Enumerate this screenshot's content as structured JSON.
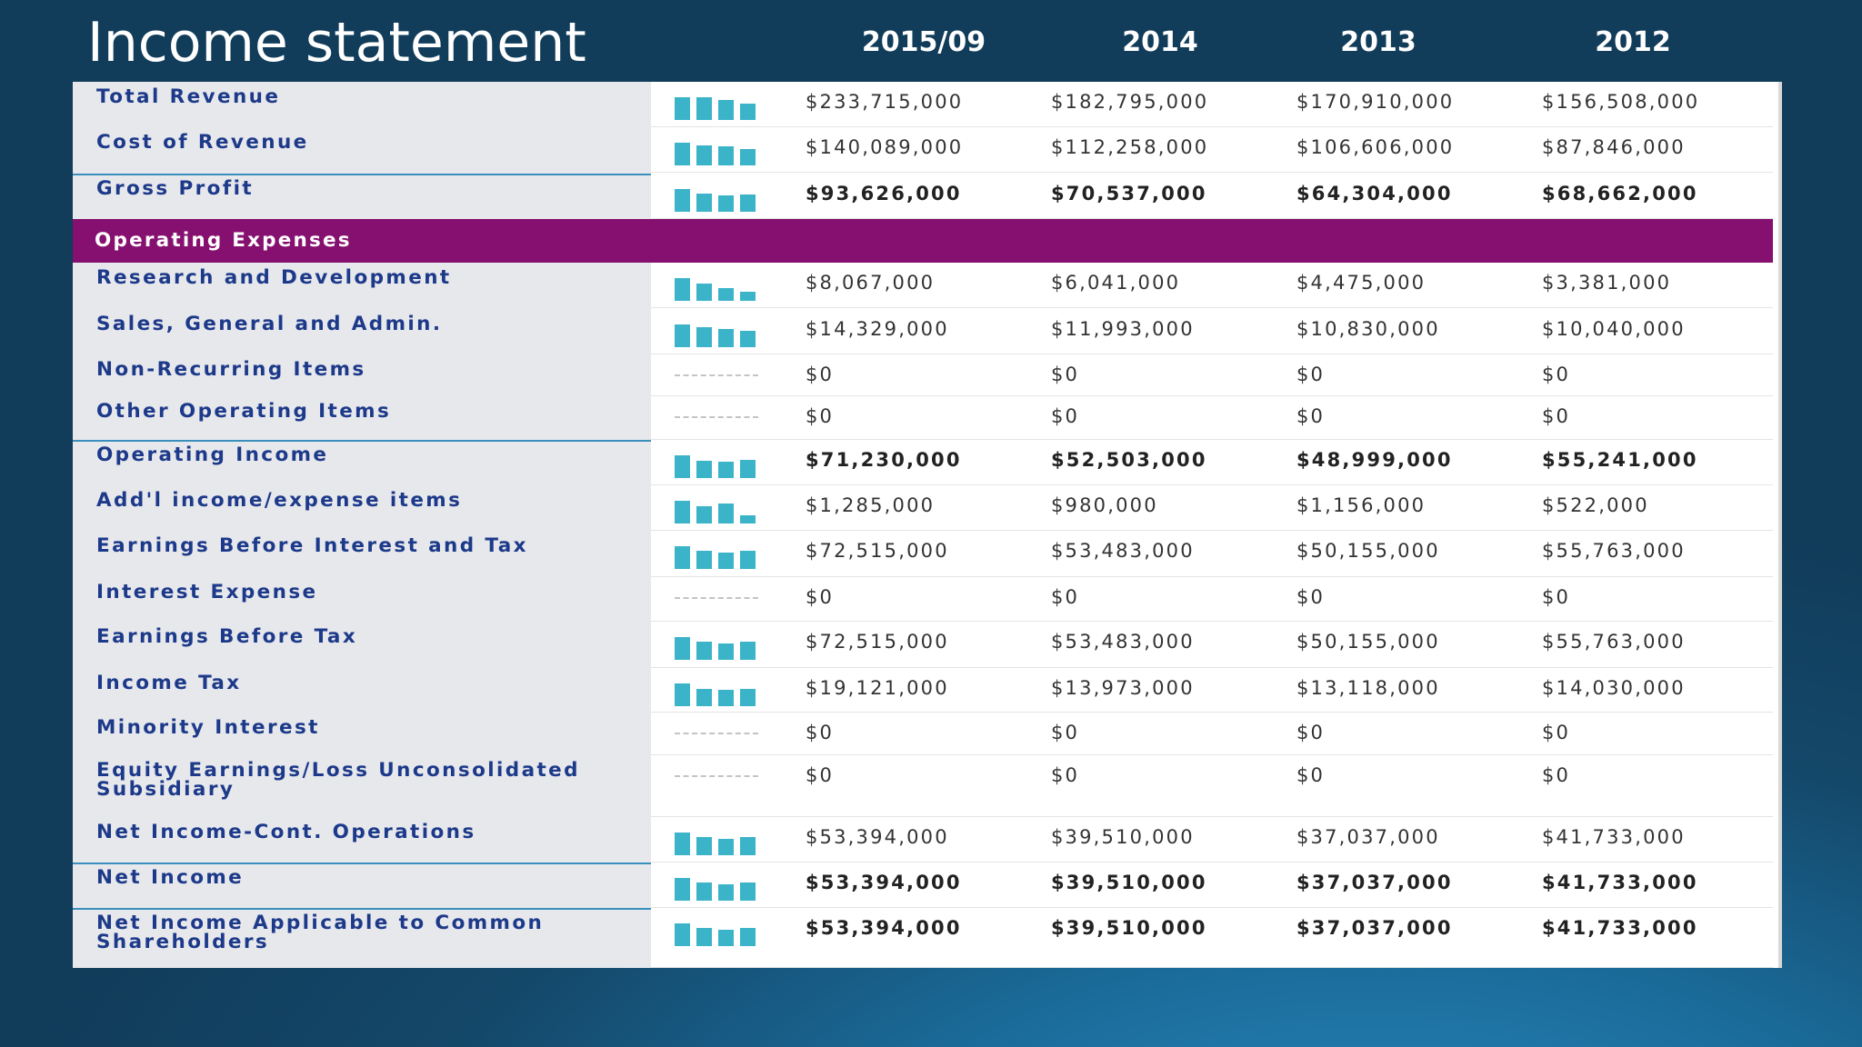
{
  "title": "Income statement",
  "years": [
    "2015/09",
    "2014",
    "2013",
    "2012"
  ],
  "colors": {
    "section_bg": "#861070",
    "label_text": "#1d3a8a",
    "spark": "#3bb3c9"
  },
  "section_header": "Operating Expenses",
  "rows": [
    {
      "label": "Total Revenue",
      "values": [
        "$233,715,000",
        "$182,795,000",
        "$170,910,000",
        "$156,508,000"
      ],
      "bold": false,
      "spark": [
        0.62,
        0.62,
        0.54,
        0.46
      ]
    },
    {
      "label": "Cost of Revenue",
      "values": [
        "$140,089,000",
        "$112,258,000",
        "$106,606,000",
        "$87,846,000"
      ],
      "bold": false,
      "spark": [
        0.62,
        0.56,
        0.52,
        0.44
      ]
    },
    {
      "label": "Gross Profit",
      "values": [
        "$93,626,000",
        "$70,537,000",
        "$64,304,000",
        "$68,662,000"
      ],
      "bold": true,
      "spark": [
        0.62,
        0.5,
        0.46,
        0.48
      ]
    },
    {
      "label": "Research and Development",
      "values": [
        "$8,067,000",
        "$6,041,000",
        "$4,475,000",
        "$3,381,000"
      ],
      "bold": false,
      "spark": [
        0.62,
        0.48,
        0.36,
        0.26
      ]
    },
    {
      "label": "Sales, General and Admin.",
      "values": [
        "$14,329,000",
        "$11,993,000",
        "$10,830,000",
        "$10,040,000"
      ],
      "bold": false,
      "spark": [
        0.62,
        0.54,
        0.5,
        0.46
      ]
    },
    {
      "label": "Non-Recurring Items",
      "values": [
        "$0",
        "$0",
        "$0",
        "$0"
      ],
      "bold": false,
      "spark": null
    },
    {
      "label": "Other Operating Items",
      "values": [
        "$0",
        "$0",
        "$0",
        "$0"
      ],
      "bold": false,
      "spark": null
    },
    {
      "label": "Operating Income",
      "values": [
        "$71,230,000",
        "$52,503,000",
        "$48,999,000",
        "$55,241,000"
      ],
      "bold": true,
      "spark": [
        0.62,
        0.48,
        0.46,
        0.5
      ]
    },
    {
      "label": "Add'l income/expense items",
      "values": [
        "$1,285,000",
        "$980,000",
        "$1,156,000",
        "$522,000"
      ],
      "bold": false,
      "spark": [
        0.62,
        0.48,
        0.56,
        0.22
      ]
    },
    {
      "label": "Earnings Before Interest and Tax",
      "values": [
        "$72,515,000",
        "$53,483,000",
        "$50,155,000",
        "$55,763,000"
      ],
      "bold": false,
      "spark": [
        0.62,
        0.5,
        0.46,
        0.5
      ]
    },
    {
      "label": "Interest Expense",
      "values": [
        "$0",
        "$0",
        "$0",
        "$0"
      ],
      "bold": false,
      "spark": null
    },
    {
      "label": "Earnings Before Tax",
      "values": [
        "$72,515,000",
        "$53,483,000",
        "$50,155,000",
        "$55,763,000"
      ],
      "bold": false,
      "spark": [
        0.62,
        0.5,
        0.46,
        0.5
      ]
    },
    {
      "label": "Income Tax",
      "values": [
        "$19,121,000",
        "$13,973,000",
        "$13,118,000",
        "$14,030,000"
      ],
      "bold": false,
      "spark": [
        0.62,
        0.48,
        0.46,
        0.48
      ]
    },
    {
      "label": "Minority Interest",
      "values": [
        "$0",
        "$0",
        "$0",
        "$0"
      ],
      "bold": false,
      "spark": null
    },
    {
      "label": "Equity Earnings/Loss Unconsolidated Subsidiary",
      "values": [
        "$0",
        "$0",
        "$0",
        "$0"
      ],
      "bold": false,
      "spark": null
    },
    {
      "label": "Net Income-Cont. Operations",
      "values": [
        "$53,394,000",
        "$39,510,000",
        "$37,037,000",
        "$41,733,000"
      ],
      "bold": false,
      "spark": [
        0.62,
        0.5,
        0.46,
        0.5
      ]
    },
    {
      "label": "Net Income",
      "values": [
        "$53,394,000",
        "$39,510,000",
        "$37,037,000",
        "$41,733,000"
      ],
      "bold": true,
      "spark": [
        0.62,
        0.5,
        0.46,
        0.5
      ]
    },
    {
      "label": "Net Income Applicable to Common Shareholders",
      "values": [
        "$53,394,000",
        "$39,510,000",
        "$37,037,000",
        "$41,733,000"
      ],
      "bold": true,
      "spark": [
        0.62,
        0.5,
        0.46,
        0.5
      ]
    }
  ]
}
